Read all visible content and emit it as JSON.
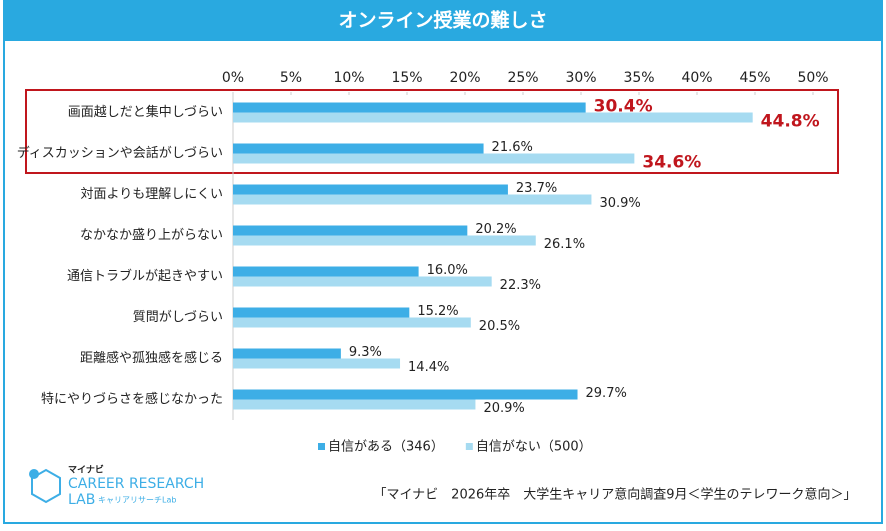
{
  "chart_data": {
    "type": "hbar",
    "title": "オンライン授業の難しさ",
    "categories": [
      "画面越しだと集中しづらい",
      "ディスカッションや会話がしづらい",
      "対面よりも理解しにくい",
      "なかなか盛り上がらない",
      "通信トラブルが起きやすい",
      "質問がしづらい",
      "距離感や孤独感を感じる",
      "特にやりづらさを感じなかった"
    ],
    "series": [
      {
        "name": "自信がある（346）",
        "color": "#3daee6",
        "values": [
          30.4,
          21.6,
          23.7,
          20.2,
          16.0,
          15.2,
          9.3,
          29.7
        ],
        "value_labels": [
          "30.4%",
          "21.6%",
          "23.7%",
          "20.2%",
          "16.0%",
          "15.2%",
          "9.3%",
          "29.7%"
        ]
      },
      {
        "name": "自信がない（500）",
        "color": "#a6dbf1",
        "values": [
          44.8,
          34.6,
          30.9,
          26.1,
          22.3,
          20.5,
          14.4,
          20.9
        ],
        "value_labels": [
          "44.8%",
          "34.6%",
          "30.9%",
          "26.1%",
          "22.3%",
          "20.5%",
          "14.4%",
          "20.9%"
        ]
      }
    ],
    "xlim": [
      0,
      50
    ],
    "xticks": [
      {
        "value": 0,
        "label": "0%"
      },
      {
        "value": 5,
        "label": "5%"
      },
      {
        "value": 10,
        "label": "10%"
      },
      {
        "value": 15,
        "label": "15%"
      },
      {
        "value": 20,
        "label": "20%"
      },
      {
        "value": 25,
        "label": "25%"
      },
      {
        "value": 30,
        "label": "30%"
      },
      {
        "value": 35,
        "label": "35%"
      },
      {
        "value": 40,
        "label": "40%"
      },
      {
        "value": 45,
        "label": "45%"
      },
      {
        "value": 50,
        "label": "50%"
      }
    ],
    "legend": "bottom",
    "source": "「マイナビ　2026年卒　大学生キャリア意向調査9月＜学生のテレワーク意向＞」"
  },
  "logo": {
    "brand": "マイナビ",
    "line1": "CAREER RESEARCH",
    "line2": "LAB",
    "sub": "キャリアリサーチLab"
  }
}
